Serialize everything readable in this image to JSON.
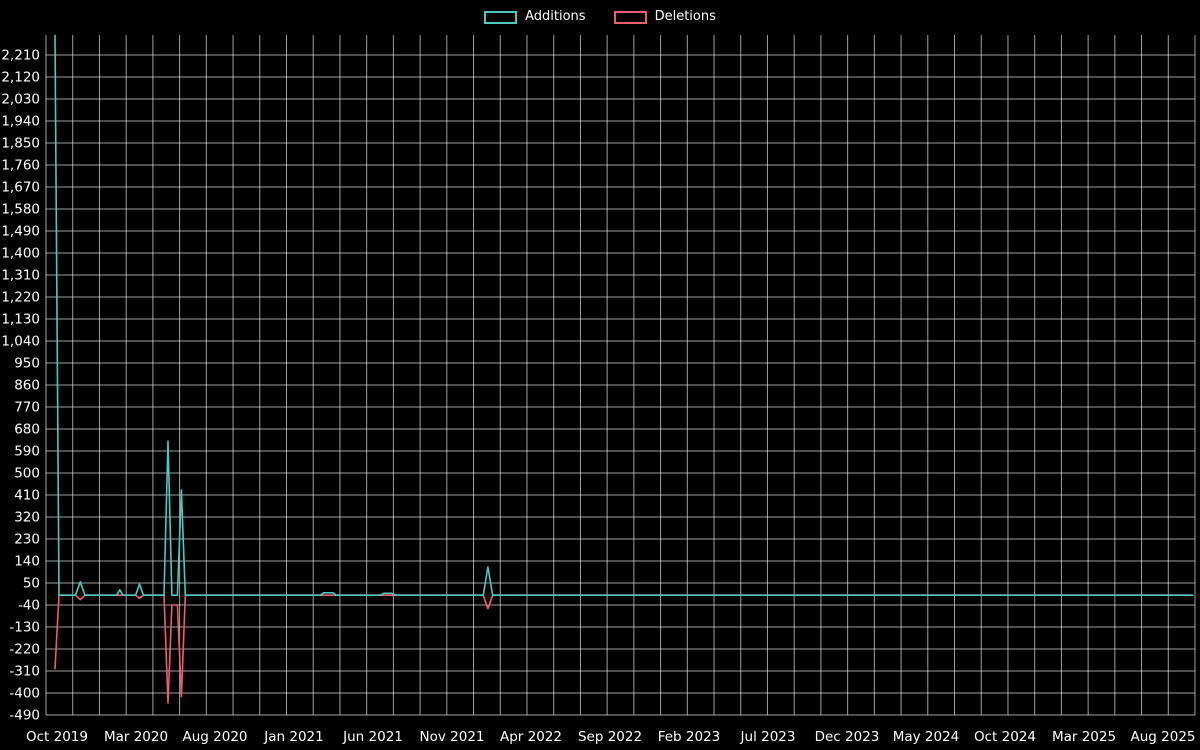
{
  "legend": {
    "items": [
      {
        "label": "Additions",
        "color": "#4fc6be"
      },
      {
        "label": "Deletions",
        "color": "#ea5f70"
      }
    ]
  },
  "colors": {
    "background": "#000000",
    "grid": "rgba(255,255,255,0.62)",
    "text": "#ffffff",
    "additions": "#4fc6be",
    "deletions": "#ea5f70"
  },
  "chart_data": {
    "type": "line",
    "title": "",
    "legend_position": "top-center",
    "grid": true,
    "x_axis": {
      "labels": [
        "Oct 2019",
        "Mar 2020",
        "Aug 2020",
        "Jan 2021",
        "Jun 2021",
        "Nov 2021",
        "Apr 2022",
        "Sep 2022",
        "Feb 2023",
        "Jul 2023",
        "Dec 2023",
        "May 2024",
        "Oct 2024",
        "Mar 2025",
        "Aug 2025"
      ],
      "label_step_months": 5,
      "start": "Oct 2019",
      "end": "Aug 2025"
    },
    "y_axis": {
      "min": -490,
      "max": 2210,
      "tick_step": 90,
      "tick_labels": [
        "2,210",
        "2,120",
        "2,030",
        "1,940",
        "1,850",
        "1,760",
        "1,670",
        "1,580",
        "1,490",
        "1,400",
        "1,310",
        "1,220",
        "1,130",
        "1,040",
        "950",
        "860",
        "770",
        "680",
        "590",
        "500",
        "410",
        "320",
        "230",
        "140",
        "50",
        "-40",
        "-130",
        "-220",
        "-310",
        "-400",
        "-490"
      ]
    },
    "series": [
      {
        "name": "Additions",
        "color": "#4fc6be",
        "points": [
          [
            0,
            2290
          ],
          [
            0.25,
            0
          ],
          [
            1.3,
            0
          ],
          [
            1.6,
            55
          ],
          [
            1.9,
            0
          ],
          [
            3.9,
            0
          ],
          [
            4.1,
            22
          ],
          [
            4.3,
            0
          ],
          [
            5.1,
            0
          ],
          [
            5.35,
            45
          ],
          [
            5.6,
            0
          ],
          [
            6.9,
            0
          ],
          [
            7.15,
            630
          ],
          [
            7.4,
            0
          ],
          [
            7.75,
            0
          ],
          [
            8.0,
            430
          ],
          [
            8.25,
            0
          ],
          [
            16.8,
            0
          ],
          [
            17.0,
            10
          ],
          [
            17.6,
            10
          ],
          [
            17.8,
            0
          ],
          [
            20.6,
            0
          ],
          [
            20.8,
            8
          ],
          [
            21.3,
            8
          ],
          [
            21.5,
            0
          ],
          [
            27.1,
            0
          ],
          [
            27.4,
            115
          ],
          [
            27.7,
            0
          ],
          [
            72,
            0
          ]
        ]
      },
      {
        "name": "Deletions",
        "color": "#ea5f70",
        "points": [
          [
            0,
            -300
          ],
          [
            0.25,
            0
          ],
          [
            1.3,
            0
          ],
          [
            1.6,
            -18
          ],
          [
            1.9,
            0
          ],
          [
            5.1,
            0
          ],
          [
            5.35,
            -12
          ],
          [
            5.6,
            0
          ],
          [
            6.9,
            0
          ],
          [
            7.15,
            -440
          ],
          [
            7.4,
            -40
          ],
          [
            7.75,
            -40
          ],
          [
            8.0,
            -415
          ],
          [
            8.25,
            0
          ],
          [
            27.1,
            0
          ],
          [
            27.4,
            -55
          ],
          [
            27.7,
            0
          ],
          [
            72,
            0
          ]
        ]
      }
    ]
  }
}
